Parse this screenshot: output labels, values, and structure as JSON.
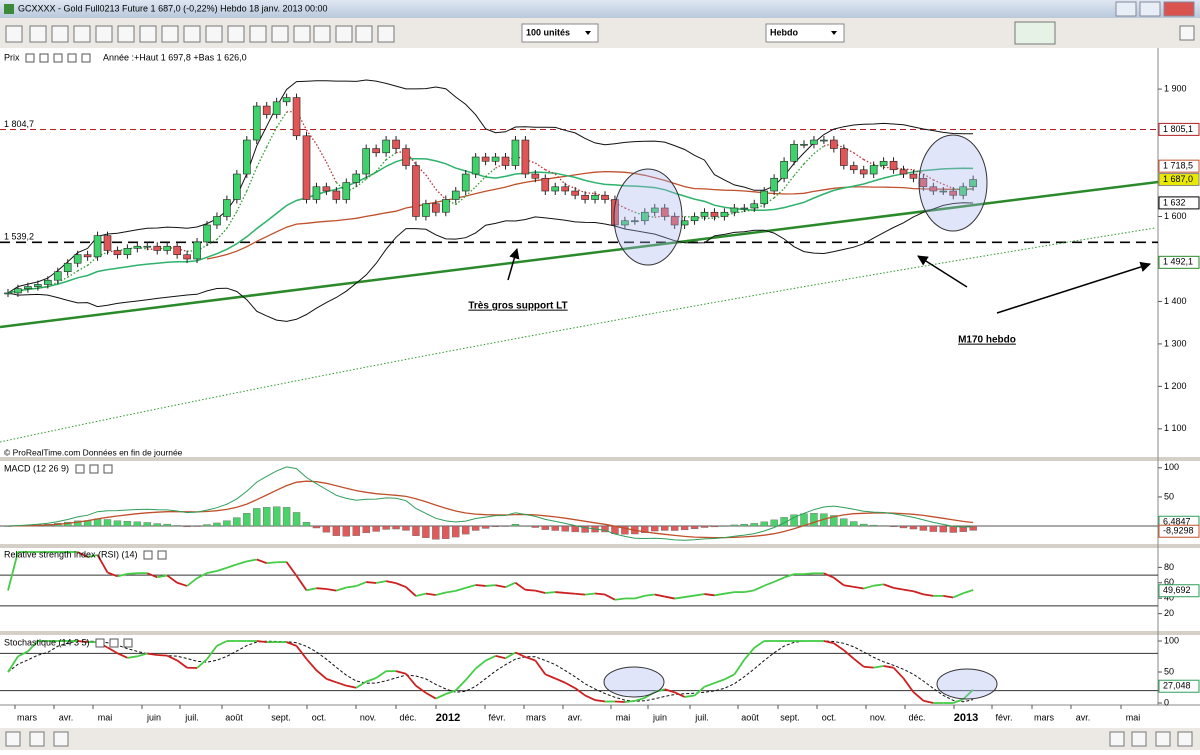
{
  "window": {
    "title": "GCXXXX - Gold Full0213 Future    1 687,0 (-0,22%)    Hebdo   18 janv. 2013 00:00"
  },
  "toolbar": {
    "quantity": "100 unités",
    "period": "Hebdo"
  },
  "chart_data": [
    {
      "type": "candlestick",
      "title": "Prix",
      "subtitle": "Année :+Haut 1 697,8 +Bas 1 626,0",
      "close": [
        1420,
        1430,
        1435,
        1440,
        1450,
        1470,
        1490,
        1510,
        1505,
        1555,
        1520,
        1510,
        1525,
        1530,
        1530,
        1520,
        1530,
        1510,
        1500,
        1540,
        1580,
        1600,
        1640,
        1700,
        1780,
        1860,
        1840,
        1870,
        1880,
        1790,
        1640,
        1670,
        1660,
        1640,
        1680,
        1700,
        1760,
        1750,
        1780,
        1760,
        1720,
        1600,
        1630,
        1610,
        1640,
        1660,
        1700,
        1740,
        1730,
        1740,
        1720,
        1780,
        1700,
        1690,
        1660,
        1670,
        1660,
        1650,
        1640,
        1650,
        1640,
        1580,
        1590,
        1590,
        1610,
        1620,
        1600,
        1580,
        1590,
        1600,
        1610,
        1600,
        1610,
        1620,
        1620,
        1630,
        1660,
        1690,
        1730,
        1770,
        1770,
        1780,
        1780,
        1760,
        1720,
        1710,
        1700,
        1720,
        1730,
        1710,
        1700,
        1690,
        1670,
        1660,
        1660,
        1650,
        1670,
        1687
      ],
      "up_color": "#3fd26a",
      "down_color": "#e05555",
      "ylim": [
        1062,
        1992
      ],
      "yticks": [
        {
          "value": 1900,
          "label": "1 900"
        },
        {
          "value": 1600,
          "label": "1 600"
        },
        {
          "value": 1400,
          "label": "1 400"
        },
        {
          "value": 1300,
          "label": "1 300"
        },
        {
          "value": 1200,
          "label": "1 200"
        },
        {
          "value": 1100,
          "label": "1 100"
        }
      ],
      "levels": [
        {
          "value": 1804.7,
          "label": "1 804,7",
          "color": "#b02020"
        },
        {
          "value": 1539.2,
          "label": "1 539,2",
          "color": "#000000"
        }
      ],
      "price_labels": [
        {
          "value": 1805.1,
          "label": "1 805,1",
          "color": "#b02020"
        },
        {
          "value": 1718.5,
          "label": "1 718,5",
          "color": "#c0502b"
        },
        {
          "value": 1687.0,
          "label": "1 687,0",
          "color": "#e8e800"
        },
        {
          "value": 1632,
          "label": "1 632",
          "color": "#000000"
        },
        {
          "value": 1492.1,
          "label": "1 492,1",
          "color": "#2a8a2a"
        }
      ],
      "annotations": [
        "Très gros support LT",
        "M170 hebdo"
      ],
      "footer": "© ProRealTime.com  Données en fin de journée"
    },
    {
      "type": "macd",
      "title": "MACD (12 26 9)",
      "ylim": [
        -24,
        110
      ],
      "yticks": [
        100,
        50
      ],
      "last_values": [
        {
          "value": 6.4847,
          "label": "6,4847",
          "color": "#2e9e5a"
        },
        {
          "value": -8.9298,
          "label": "-8,9298",
          "color": "#c0502b"
        }
      ]
    },
    {
      "type": "rsi",
      "title": "Relative strength index (RSI) (14)",
      "ylim": [
        0,
        100
      ],
      "yticks": [
        80,
        60,
        40,
        20
      ],
      "levels": [
        70,
        30
      ],
      "last_values": [
        {
          "value": 49.692,
          "label": "49,692",
          "color": "#2e9e5a"
        }
      ]
    },
    {
      "type": "stochastic",
      "title": "Stochastique (14 3 5)",
      "ylim": [
        0,
        100
      ],
      "yticks": [
        100,
        50,
        0
      ],
      "levels": [
        80,
        20
      ],
      "last_values": [
        {
          "value": 27.048,
          "label": "27,048",
          "color": "#2e9e5a"
        }
      ]
    }
  ],
  "xaxis": {
    "labels": [
      "mars",
      "avr.",
      "mai",
      "juin",
      "juil.",
      "août",
      "sept.",
      "oct.",
      "nov.",
      "déc.",
      "2012",
      "févr.",
      "mars",
      "avr.",
      "mai",
      "juin",
      "juil.",
      "août",
      "sept.",
      "oct.",
      "nov.",
      "déc.",
      "2013",
      "févr.",
      "mars",
      "avr.",
      "mai"
    ]
  }
}
